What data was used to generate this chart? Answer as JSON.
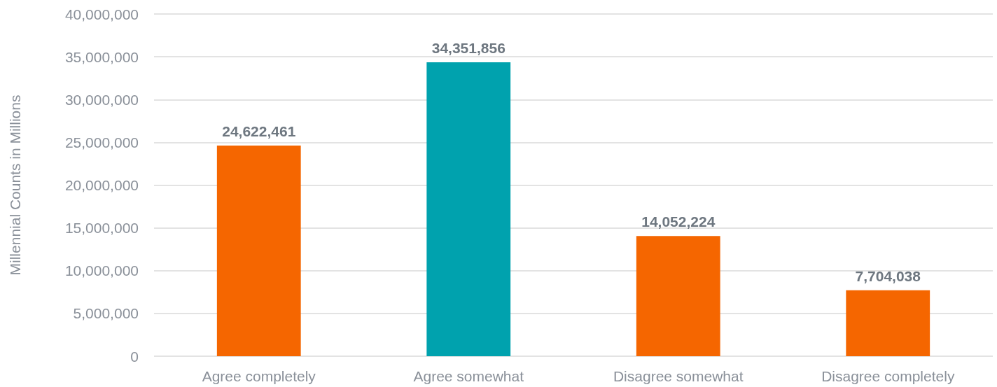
{
  "chart_data": {
    "type": "bar",
    "ylabel": "Millennial Counts in Millions",
    "categories": [
      "Agree completely",
      "Agree somewhat",
      "Disagree somewhat",
      "Disagree completely"
    ],
    "values": [
      24622461,
      34351856,
      14052224,
      7704038
    ],
    "value_labels": [
      "24,622,461",
      "34,351,856",
      "14,052,224",
      "7,704,038"
    ],
    "colors": [
      "#f56600",
      "#00a2ae",
      "#f56600",
      "#f56600"
    ],
    "ylim": [
      0,
      40000000
    ],
    "yticks": [
      0,
      {
        "value": 5000000,
        "label": "5,000,000"
      },
      {
        "value": 10000000,
        "label": "10,000,000"
      },
      {
        "value": 15000000,
        "label": "15,000,000"
      },
      {
        "value": 20000000,
        "label": "20,000,000"
      },
      {
        "value": 25000000,
        "label": "25,000,000"
      },
      {
        "value": 30000000,
        "label": "30,000,000"
      },
      {
        "value": 35000000,
        "label": "35,000,000"
      },
      {
        "value": 40000000,
        "label": "40,000,000"
      }
    ],
    "grid": "y"
  }
}
